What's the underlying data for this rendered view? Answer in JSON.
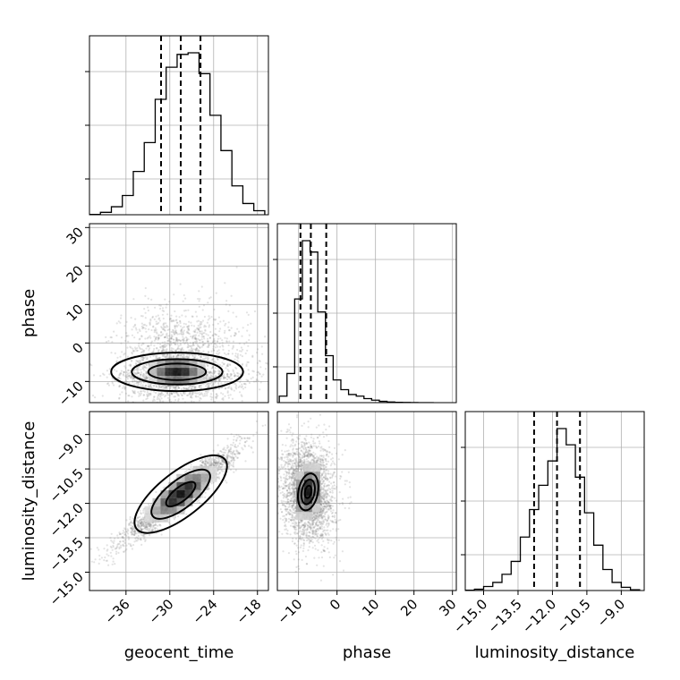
{
  "chart_data": {
    "type": "corner",
    "parameters": [
      {
        "name": "geocent_time",
        "label": "geocent_time",
        "range": [
          -41,
          -16.5
        ],
        "ticks": [
          -36,
          -30,
          -24,
          -18
        ],
        "tick_labels": [
          "−36",
          "−30",
          "−24",
          "−18"
        ],
        "quantiles": [
          -31.2,
          -28.5,
          -25.8
        ]
      },
      {
        "name": "phase",
        "label": "phase",
        "range": [
          -15.5,
          31
        ],
        "ticks": [
          -10,
          0,
          10,
          20,
          30
        ],
        "tick_labels": [
          "−10",
          "0",
          "10",
          "20",
          "30"
        ],
        "quantiles": [
          -9.5,
          -6.8,
          -2.8
        ]
      },
      {
        "name": "luminosity_distance",
        "label": "luminosity_distance",
        "range": [
          -15.8,
          -8.0
        ],
        "ticks": [
          -15.0,
          -13.5,
          -12.0,
          -10.5,
          -9.0
        ],
        "tick_labels": [
          "−15.0",
          "−13.5",
          "−12.0",
          "−10.5",
          "−9.0"
        ],
        "quantiles": [
          -12.8,
          -11.8,
          -10.8
        ]
      }
    ],
    "histograms": [
      {
        "parameter": "geocent_time",
        "bin_edges": [
          -41,
          -39.5,
          -38,
          -36.5,
          -35,
          -33.5,
          -32,
          -30.5,
          -29,
          -27.5,
          -26,
          -24.5,
          -23,
          -21.5,
          -20,
          -18.5,
          -17
        ],
        "counts": [
          0.2,
          1.5,
          5,
          12,
          27,
          45,
          72,
          92,
          100,
          101,
          88,
          62,
          40,
          18,
          7,
          2.5
        ]
      },
      {
        "parameter": "phase",
        "bin_edges": [
          -15,
          -13,
          -11,
          -9,
          -7,
          -5,
          -3,
          -1,
          1,
          3,
          5,
          7,
          9,
          11,
          13,
          15,
          17,
          19,
          21,
          23,
          25
        ],
        "counts": [
          4,
          18,
          64,
          100,
          93,
          56,
          29,
          14,
          8,
          5,
          4,
          2.5,
          1.5,
          0.8,
          0.4,
          0.2,
          0.1,
          0.05,
          0.02,
          0.01
        ]
      },
      {
        "parameter": "luminosity_distance",
        "bin_edges": [
          -15.8,
          -15.4,
          -15,
          -14.6,
          -14.2,
          -13.8,
          -13.4,
          -13,
          -12.6,
          -12.2,
          -11.8,
          -11.4,
          -11,
          -10.6,
          -10.2,
          -9.8,
          -9.4,
          -9,
          -8.6,
          -8.2
        ],
        "counts": [
          0.2,
          0.8,
          2.5,
          5,
          10,
          18,
          33,
          50,
          65,
          80,
          100,
          90,
          70,
          48,
          28,
          13,
          5,
          2,
          0.5
        ]
      }
    ],
    "pairs": [
      {
        "x": "geocent_time",
        "y": "phase",
        "center": [
          -29,
          -7.5
        ],
        "spread": [
          3.8,
          3.6
        ],
        "skew": 0.6,
        "contour_levels": [
          [
            4.2,
            2.4
          ],
          [
            6.6,
            3.7
          ],
          [
            9.6,
            5.6
          ]
        ],
        "correlation": 0
      },
      {
        "x": "geocent_time",
        "y": "luminosity_distance",
        "center": [
          -28.5,
          -11.6
        ],
        "spread": [
          3.8,
          1.0
        ],
        "correlation": 0.95,
        "contour_levels": [
          [
            2.0
          ],
          [
            4.0
          ],
          [
            6.3
          ]
        ]
      },
      {
        "x": "phase",
        "y": "luminosity_distance",
        "center": [
          -7.5,
          -11.5
        ],
        "spread": [
          3.4,
          1.1
        ],
        "correlation": -0.1,
        "contour_levels": [
          [
            1.0
          ],
          [
            2.0
          ],
          [
            3.0
          ]
        ]
      }
    ],
    "colors": {
      "line": "#000000",
      "grid": "#b0b0b0",
      "points": "#808080",
      "density_dark": "#000000",
      "density_light": "#ffffff"
    },
    "grid": true,
    "quantile_line_style": "dashed"
  }
}
